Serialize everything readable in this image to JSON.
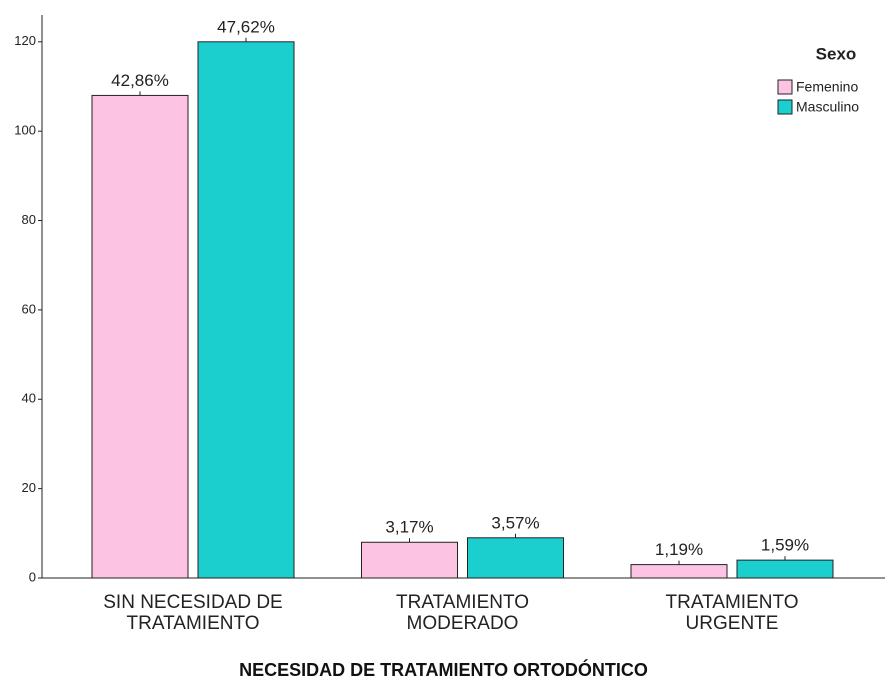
{
  "chart_data": {
    "type": "bar",
    "x_label": "NECESIDAD DE TRATAMIENTO ORTODÓNTICO",
    "legend_title": "Sexo",
    "legend_position": "upper right",
    "categories": [
      "SIN NECESIDAD DE TRATAMIENTO",
      "TRATAMIENTO MODERADO",
      "TRATAMIENTO URGENTE"
    ],
    "series": [
      {
        "name": "Femenino",
        "color": "#fcc4e2",
        "values": [
          108,
          8,
          3
        ],
        "percents": [
          42.86,
          3.17,
          1.19
        ],
        "percent_labels": [
          "42,86%",
          "3,17%",
          "1,19%"
        ]
      },
      {
        "name": "Masculino",
        "color": "#1ccfcf",
        "values": [
          120,
          9,
          4
        ],
        "percents": [
          47.62,
          3.57,
          1.59
        ],
        "percent_labels": [
          "47,62%",
          "3,57%",
          "1,59%"
        ]
      }
    ],
    "ylim": [
      0,
      126
    ],
    "yticks": [
      0,
      20,
      40,
      60,
      80,
      100,
      120
    ],
    "grid": false
  }
}
